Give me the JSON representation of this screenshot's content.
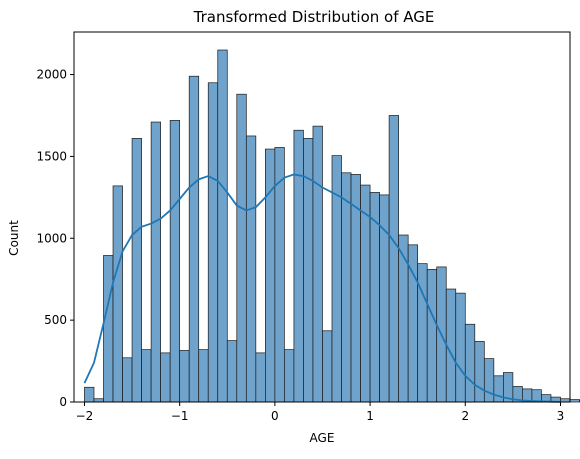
{
  "chart_data": {
    "type": "histogram",
    "title": "Transformed Distribution of AGE",
    "xlabel": "AGE",
    "ylabel": "Count",
    "xlim": [
      -2.11,
      3.1
    ],
    "ylim": [
      0,
      2260
    ],
    "x_ticks": [
      -2,
      -1,
      0,
      1,
      2,
      3
    ],
    "x_tick_labels": [
      "−2",
      "−1",
      "0",
      "1",
      "2",
      "3"
    ],
    "y_ticks": [
      0,
      500,
      1000,
      1500,
      2000
    ],
    "y_tick_labels": [
      "0",
      "500",
      "1000",
      "1500",
      "2000"
    ],
    "grid": false,
    "bar_color": "#6fa3cc",
    "bar_edge_color": "#1a1a1a",
    "kde_color": "#1f77b4",
    "bins": {
      "start": -2.0,
      "width": 0.1,
      "counts": [
        90,
        20,
        895,
        1320,
        270,
        1610,
        320,
        1710,
        300,
        1720,
        315,
        1990,
        320,
        1950,
        2150,
        375,
        1880,
        1625,
        300,
        1545,
        1555,
        320,
        1660,
        1610,
        1685,
        435,
        1505,
        1400,
        1390,
        1325,
        1280,
        1265,
        1750,
        1020,
        960,
        845,
        810,
        825,
        690,
        665,
        475,
        370,
        265,
        160,
        180,
        95,
        80,
        75,
        45,
        30,
        20,
        15,
        10,
        10,
        5,
        5,
        5,
        5,
        5,
        5,
        5
      ]
    },
    "kde": {
      "x": [
        -2.0,
        -1.9,
        -1.8,
        -1.7,
        -1.6,
        -1.5,
        -1.4,
        -1.3,
        -1.2,
        -1.1,
        -1.0,
        -0.9,
        -0.8,
        -0.7,
        -0.6,
        -0.5,
        -0.4,
        -0.3,
        -0.2,
        -0.1,
        0.0,
        0.1,
        0.2,
        0.3,
        0.4,
        0.5,
        0.6,
        0.7,
        0.8,
        0.9,
        1.0,
        1.1,
        1.2,
        1.3,
        1.4,
        1.5,
        1.6,
        1.7,
        1.8,
        1.9,
        2.0,
        2.1,
        2.2,
        2.3,
        2.4,
        2.5,
        2.6,
        2.7,
        2.8,
        2.9,
        3.0
      ],
      "y": [
        115,
        240,
        480,
        730,
        920,
        1020,
        1070,
        1090,
        1120,
        1170,
        1240,
        1310,
        1360,
        1380,
        1350,
        1280,
        1200,
        1170,
        1190,
        1250,
        1320,
        1370,
        1390,
        1380,
        1350,
        1310,
        1280,
        1250,
        1210,
        1170,
        1130,
        1080,
        1020,
        940,
        840,
        730,
        600,
        470,
        350,
        240,
        160,
        105,
        70,
        45,
        28,
        17,
        10,
        6,
        4,
        2,
        1
      ]
    }
  }
}
